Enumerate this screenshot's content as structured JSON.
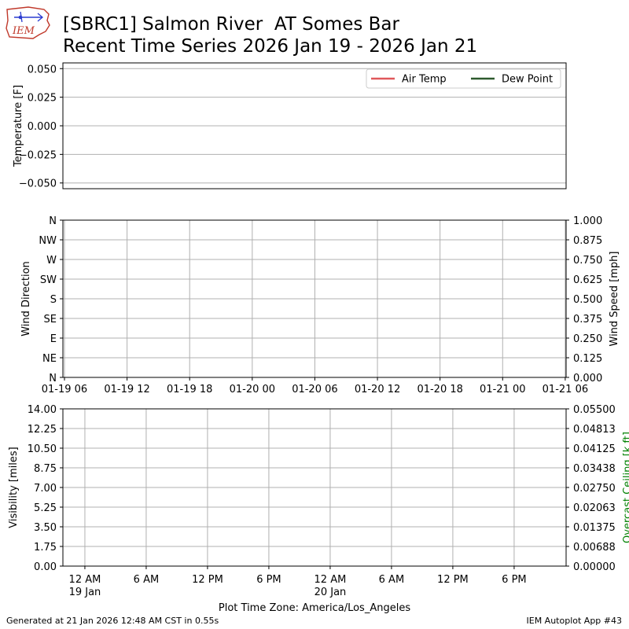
{
  "header": {
    "title_line1": "[SBRC1] Salmon River  AT Somes Bar",
    "title_line2": "Recent Time Series 2026 Jan 19 - 2026 Jan 21",
    "logo_text": "IEM"
  },
  "footer": {
    "generated": "Generated at 21 Jan 2026 12:48 AM CST in 0.55s",
    "app": "IEM Autoplot App #43"
  },
  "colors": {
    "air_temp": "#e0585b",
    "dew_point": "#2e5a2e",
    "grid": "#b0b0b0",
    "ceiling_axis": "#008000"
  },
  "chart_data": [
    {
      "type": "line",
      "ylabel": "Temperature [F]",
      "ylim": [
        -0.055,
        0.055
      ],
      "yticks": [
        -0.05,
        -0.025,
        0,
        0.025,
        0.05
      ],
      "ytick_labels": [
        "−0.050",
        "−0.025",
        "0.000",
        "0.025",
        "0.050"
      ],
      "grid": "horizontal",
      "legend_position": "top-right",
      "series": [
        {
          "name": "Air Temp",
          "values": [],
          "color": "#e0585b"
        },
        {
          "name": "Dew Point",
          "values": [],
          "color": "#2e5a2e"
        }
      ]
    },
    {
      "type": "scatter",
      "ylabel": "Wind Direction",
      "y2label": "Wind Speed [mph]",
      "yticks_left": [
        "N",
        "NE",
        "E",
        "SE",
        "S",
        "SW",
        "W",
        "NW",
        "N"
      ],
      "ylim_left": [
        0,
        360
      ],
      "ylim_right": [
        0,
        1
      ],
      "yticks_right": [
        "0.000",
        "0.125",
        "0.250",
        "0.375",
        "0.500",
        "0.625",
        "0.750",
        "0.875",
        "1.000"
      ],
      "xtick_labels": [
        "01-19 06",
        "01-19 12",
        "01-19 18",
        "01-20 00",
        "01-20 06",
        "01-20 12",
        "01-20 18",
        "01-21 00",
        "01-21 06"
      ],
      "x": [
        "2026-01-19 06:00",
        "2026-01-19 12:00",
        "2026-01-19 18:00",
        "2026-01-20 00:00",
        "2026-01-20 06:00",
        "2026-01-20 12:00",
        "2026-01-20 18:00",
        "2026-01-21 00:00",
        "2026-01-21 06:00"
      ],
      "xlim": [
        "2026-01-19 06:00",
        "2026-01-21 06:00"
      ],
      "grid": "both",
      "series": []
    },
    {
      "type": "line",
      "ylabel": "Visibility [miles]",
      "y2label": "Overcast Ceiling [k ft]",
      "ylim": [
        0,
        14
      ],
      "yticks": [
        "0.00",
        "1.75",
        "3.50",
        "5.25",
        "7.00",
        "8.75",
        "10.50",
        "12.25",
        "14.00"
      ],
      "ylim_right": [
        0,
        0.055
      ],
      "yticks_right": [
        "0.00000",
        "0.00688",
        "0.01375",
        "0.02063",
        "0.02750",
        "0.03438",
        "0.04125",
        "0.04813",
        "0.05500"
      ],
      "xtick_labels": [
        "12 AM",
        "6 AM",
        "12 PM",
        "6 PM",
        "12 AM",
        "6 AM",
        "12 PM",
        "6 PM"
      ],
      "xtick_sublabels": [
        "19 Jan",
        "",
        "",
        "",
        "20 Jan",
        "",
        "",
        ""
      ],
      "x": [
        "2026-01-19 00:00",
        "2026-01-19 06:00",
        "2026-01-19 12:00",
        "2026-01-19 18:00",
        "2026-01-20 00:00",
        "2026-01-20 06:00",
        "2026-01-20 12:00",
        "2026-01-20 18:00"
      ],
      "xlim": [
        "2026-01-18 21:51",
        "2026-01-20 23:05"
      ],
      "xlabel": "Plot Time Zone: America/Los_Angeles",
      "grid": "both",
      "series": []
    }
  ]
}
